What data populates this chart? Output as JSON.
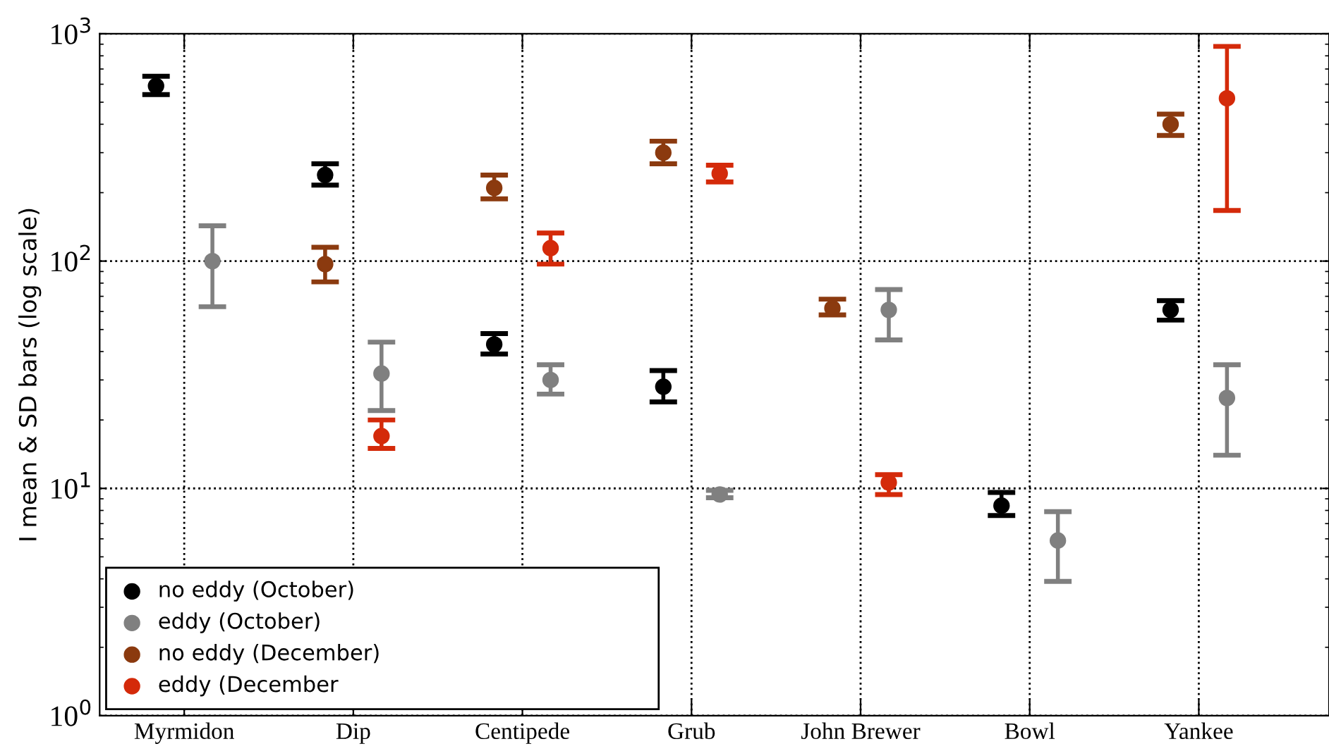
{
  "chart_data": {
    "type": "scatter",
    "ylabel": "I mean & SD bars (log scale)",
    "categories": [
      "Myrmidon",
      "Dip",
      "Centipede",
      "Grub",
      "John Brewer",
      "Bowl",
      "Yankee"
    ],
    "series": [
      {
        "name": "no eddy (October)",
        "color": "#000000",
        "values": [
          590,
          239,
          43,
          28,
          null,
          8.4,
          61
        ],
        "errors": [
          [
            540,
            650
          ],
          [
            216,
            268
          ],
          [
            39,
            48
          ],
          [
            24,
            33
          ],
          null,
          [
            7.6,
            9.6
          ],
          [
            55,
            67
          ]
        ]
      },
      {
        "name": "eddy (October)",
        "color": "#808080",
        "values": [
          100,
          32,
          30,
          9.4,
          61,
          5.9,
          25
        ],
        "errors": [
          [
            63,
            143
          ],
          [
            22,
            44
          ],
          [
            26,
            35
          ],
          [
            9.1,
            9.8
          ],
          [
            45,
            75
          ],
          [
            3.9,
            7.9
          ],
          [
            14,
            35
          ]
        ]
      },
      {
        "name": "no eddy (December)",
        "color": "#8b3a0f",
        "values": [
          null,
          97,
          210,
          300,
          62,
          null,
          400
        ],
        "errors": [
          null,
          [
            81,
            115
          ],
          [
            188,
            239
          ],
          [
            268,
            337
          ],
          [
            58,
            68
          ],
          null,
          [
            357,
            443
          ]
        ]
      },
      {
        "name": "eddy (December",
        "color": "#d42a0a",
        "values": [
          null,
          17,
          114,
          243,
          10.6,
          null,
          520
        ],
        "errors": [
          null,
          [
            15,
            20
          ],
          [
            97,
            133
          ],
          [
            223,
            264
          ],
          [
            9.4,
            11.5
          ],
          null,
          [
            167,
            880
          ]
        ]
      }
    ],
    "log": "y",
    "ylim": [
      1,
      1000
    ],
    "yticks": [
      {
        "value": 1,
        "label": "10$^{0}$"
      },
      {
        "value": 10,
        "label": "10$^{1}$"
      },
      {
        "value": 100,
        "label": "10$^{2}$"
      },
      {
        "value": 1000,
        "label": "10$^{3}$"
      }
    ],
    "grid": true,
    "legend": "bottom left",
    "marker": "circle"
  }
}
